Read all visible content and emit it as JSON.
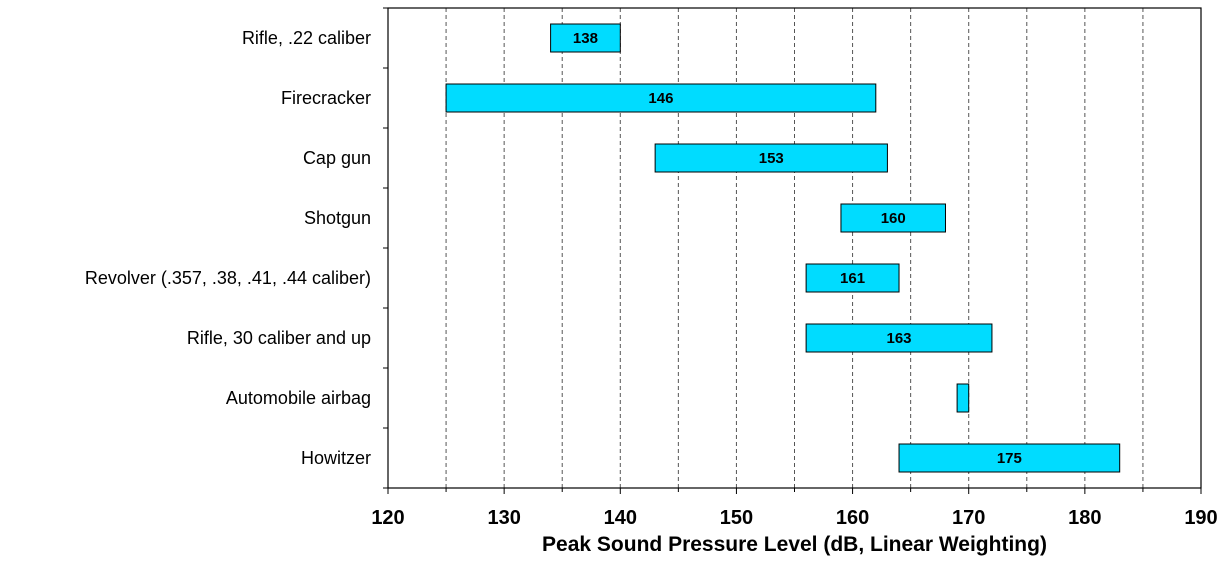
{
  "chart_data": {
    "type": "bar",
    "orientation": "horizontal-range",
    "title": "",
    "xlabel": "Peak Sound Pressure Level (dB, Linear Weighting)",
    "ylabel": "",
    "xlim": [
      120,
      190
    ],
    "x_ticks": [
      120,
      130,
      140,
      150,
      160,
      170,
      180,
      190
    ],
    "gridlines": "vertical dashed at 5 dB",
    "bar_color": "#00dcff",
    "categories": [
      "Rifle, .22 caliber",
      "Firecracker",
      "Cap gun",
      "Shotgun",
      "Revolver (.357, .38, .41, .44 caliber)",
      "Rifle, 30 caliber and up",
      "Automobile airbag",
      "Howitzer"
    ],
    "ranges": [
      {
        "min": 134,
        "max": 140,
        "label": "138"
      },
      {
        "min": 125,
        "max": 162,
        "label": "146"
      },
      {
        "min": 143,
        "max": 163,
        "label": "153"
      },
      {
        "min": 159,
        "max": 168,
        "label": "160"
      },
      {
        "min": 156,
        "max": 164,
        "label": "161"
      },
      {
        "min": 156,
        "max": 172,
        "label": "163"
      },
      {
        "min": 169,
        "max": 170,
        "label": ""
      },
      {
        "min": 164,
        "max": 183,
        "label": "175"
      }
    ]
  }
}
